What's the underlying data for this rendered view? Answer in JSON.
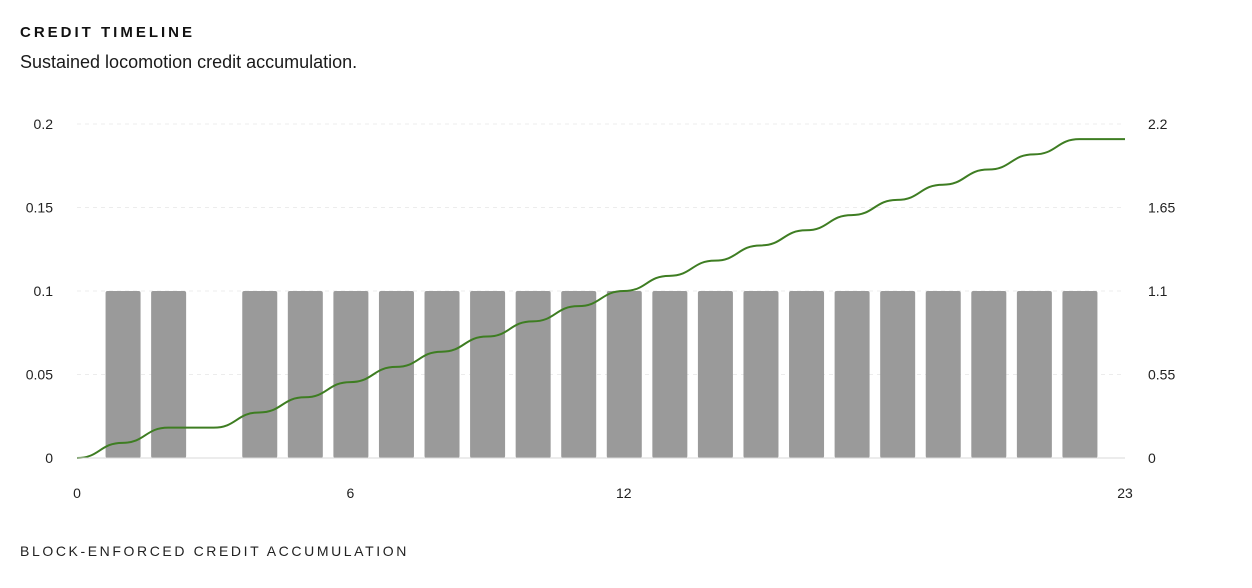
{
  "header": {
    "title": "CREDIT TIMELINE",
    "subtitle": "Sustained locomotion credit accumulation."
  },
  "footer": {
    "label": "BLOCK-ENFORCED CREDIT ACCUMULATION"
  },
  "colors": {
    "bars": "#9a9a9a",
    "line": "#3e7d22",
    "grid": "#ececec",
    "baseline": "#d9d9d9"
  },
  "chart_data": {
    "type": "bar",
    "x": [
      1,
      2,
      3,
      4,
      5,
      6,
      7,
      8,
      9,
      10,
      11,
      12,
      13,
      14,
      15,
      16,
      17,
      18,
      19,
      20,
      21,
      22
    ],
    "xlim": [
      0,
      23
    ],
    "xticks": [
      "0",
      "6",
      "12",
      "23"
    ],
    "bars": {
      "values": [
        0.1,
        0.1,
        0,
        0.1,
        0.1,
        0.1,
        0.1,
        0.1,
        0.1,
        0.1,
        0.1,
        0.1,
        0.1,
        0.1,
        0.1,
        0.1,
        0.1,
        0.1,
        0.1,
        0.1,
        0.1,
        0.1
      ],
      "axis": "left"
    },
    "line": {
      "x": [
        0,
        1,
        2,
        3,
        4,
        5,
        6,
        7,
        8,
        9,
        10,
        11,
        12,
        13,
        14,
        15,
        16,
        17,
        18,
        19,
        20,
        21,
        22,
        23
      ],
      "values": [
        0,
        0.1,
        0.2,
        0.2,
        0.3,
        0.4,
        0.5,
        0.6,
        0.7,
        0.8,
        0.9,
        1.0,
        1.1,
        1.2,
        1.3,
        1.4,
        1.5,
        1.6,
        1.7,
        1.8,
        1.9,
        2.0,
        2.1,
        2.1
      ],
      "axis": "right"
    },
    "y_left": {
      "ylim": [
        0,
        0.2
      ],
      "ticks": [
        "0",
        "0.05",
        "0.1",
        "0.15",
        "0.2"
      ]
    },
    "y_right": {
      "ylim": [
        0,
        2.2
      ],
      "ticks": [
        "0",
        "0.55",
        "1.1",
        "1.65",
        "2.2"
      ]
    },
    "grid": true
  }
}
